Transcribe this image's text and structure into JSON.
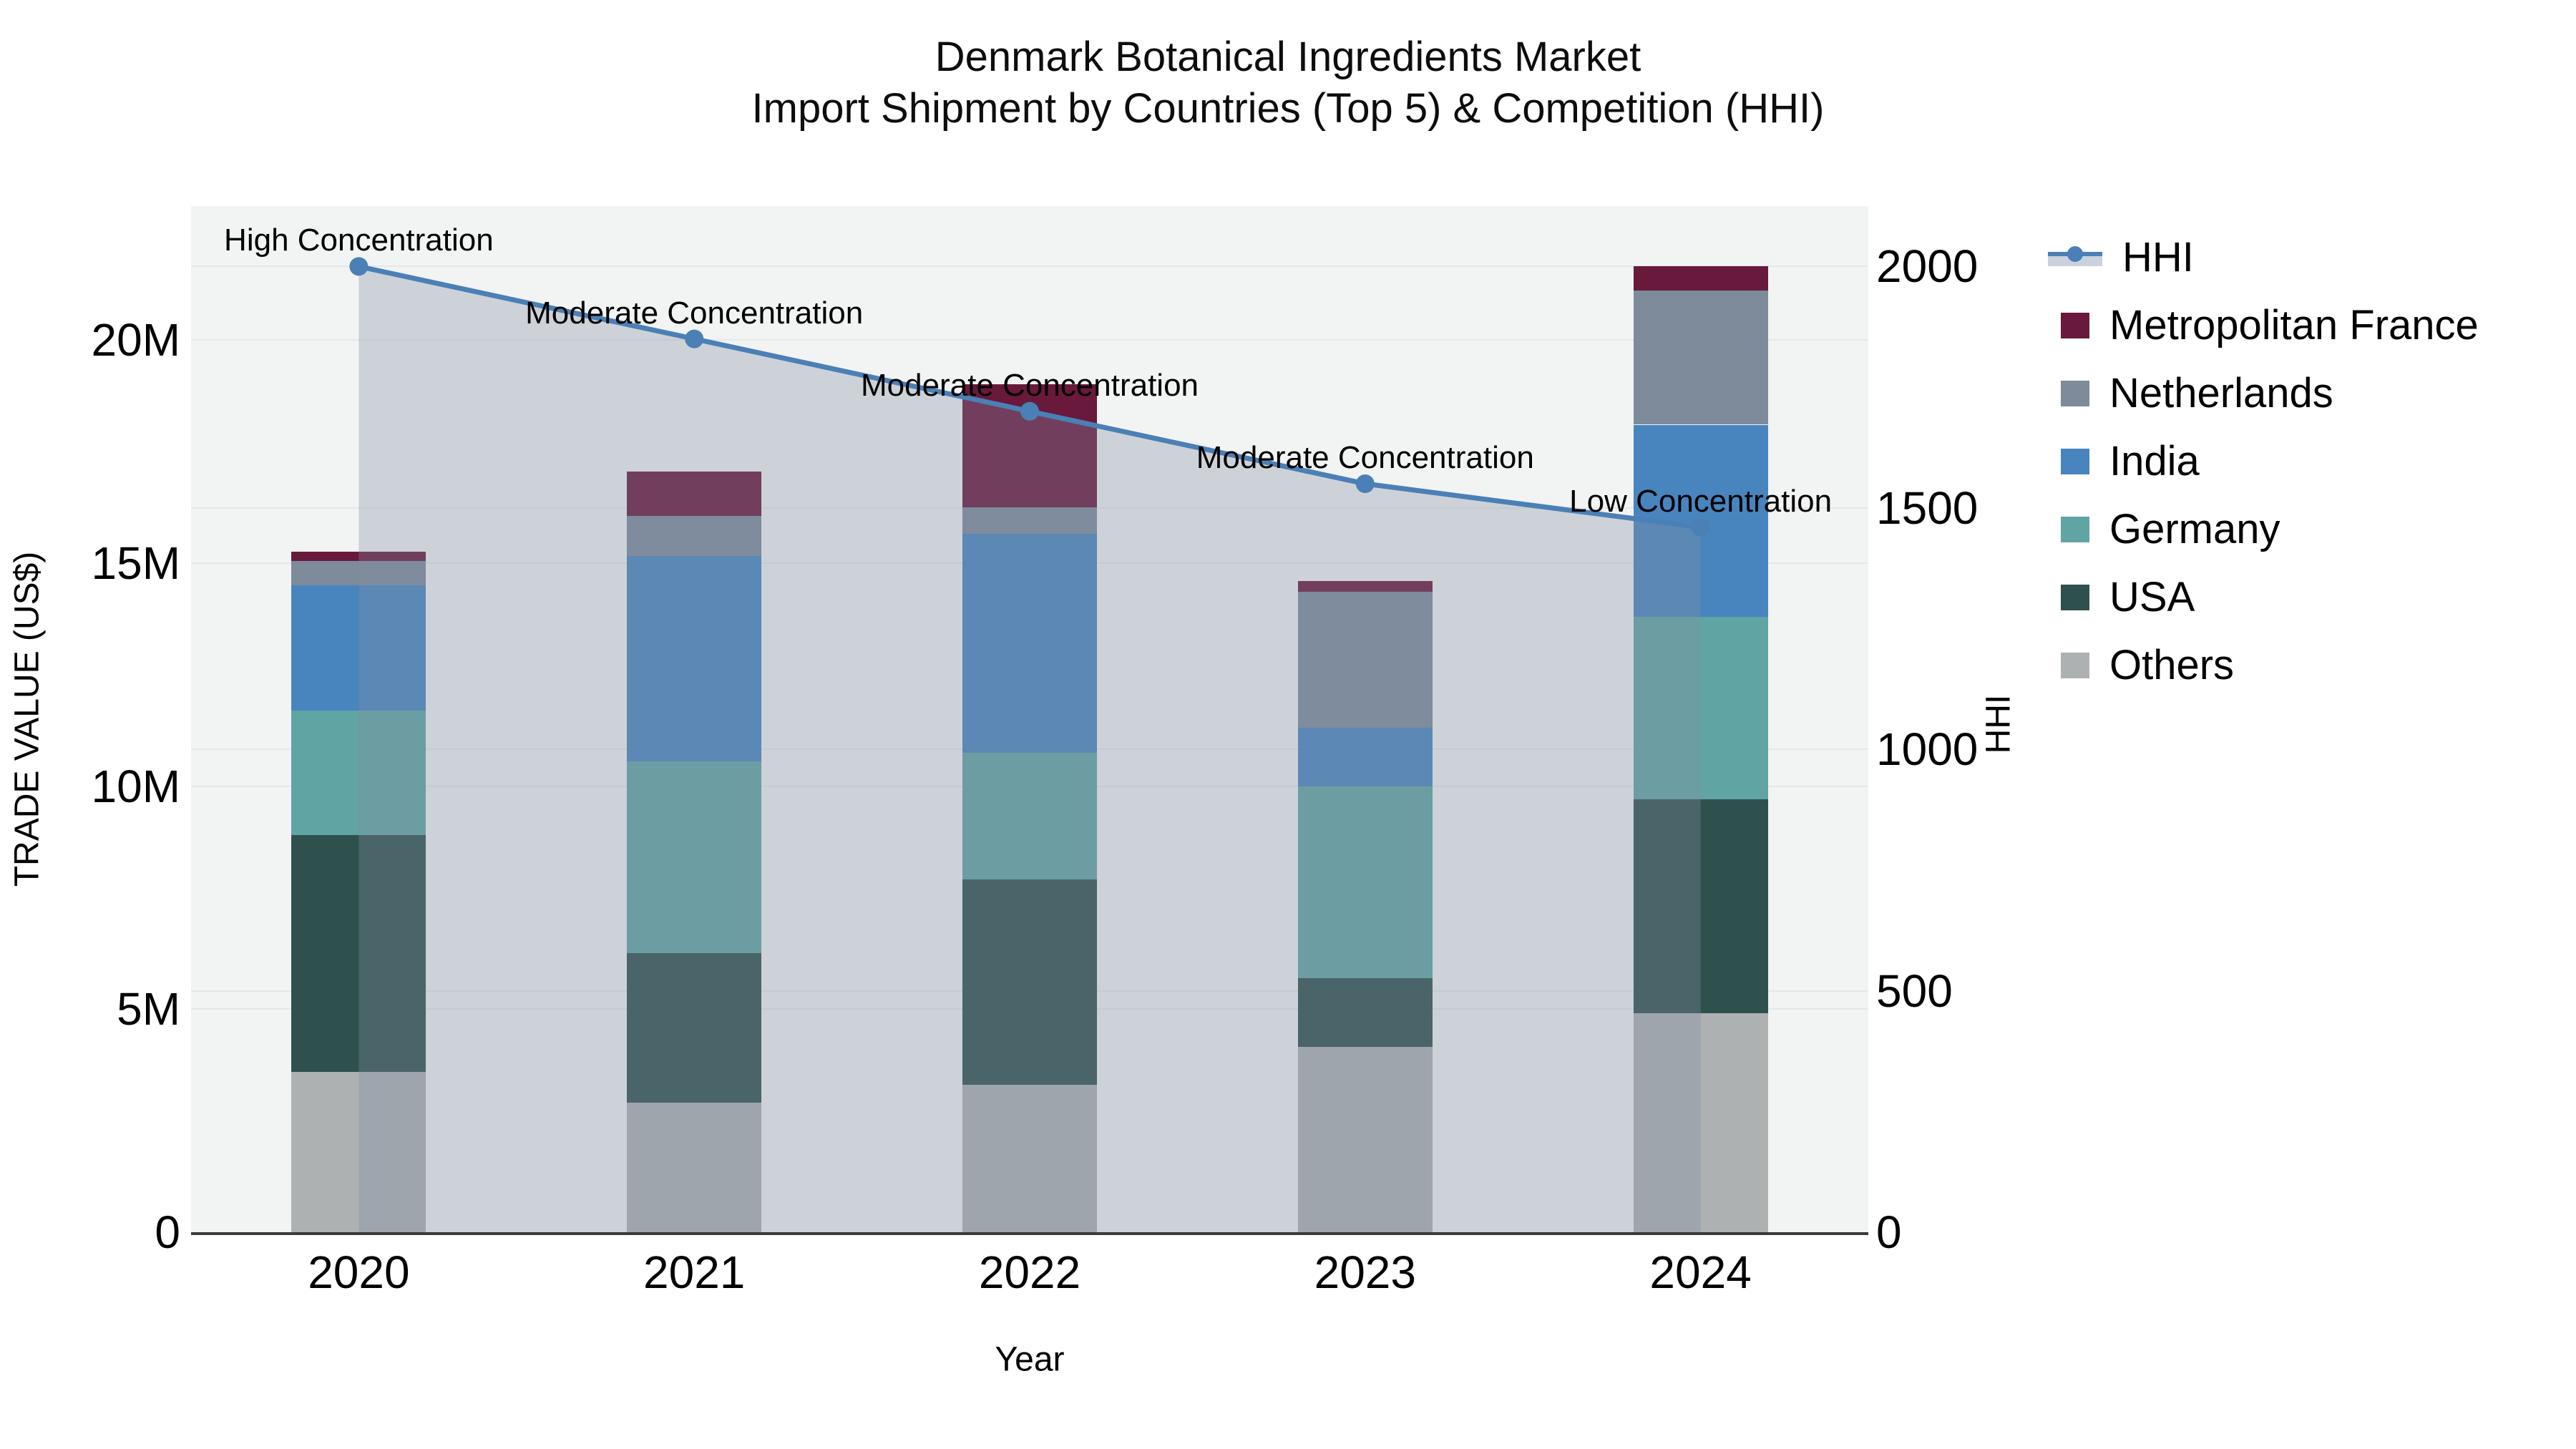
{
  "title": {
    "line1": "Denmark Botanical Ingredients Market",
    "line2": "Import Shipment by Countries (Top 5) & Competition (HHI)"
  },
  "chart_data": {
    "type": "combo: stacked bar + line (dual y-axes)",
    "categories": [
      "2020",
      "2021",
      "2022",
      "2023",
      "2024"
    ],
    "bar_value_unit": "million US$",
    "series": [
      {
        "name": "Others",
        "color": "#aeb1b2",
        "values": [
          3.6,
          2.9,
          3.3,
          4.15,
          4.9
        ]
      },
      {
        "name": "USA",
        "color": "#2f514e",
        "values": [
          5.3,
          3.35,
          4.6,
          1.55,
          4.8
        ]
      },
      {
        "name": "Germany",
        "color": "#60a4a4",
        "values": [
          2.8,
          4.3,
          2.85,
          4.3,
          4.1
        ]
      },
      {
        "name": "India",
        "color": "#4885be",
        "values": [
          2.8,
          4.6,
          4.9,
          1.3,
          4.3
        ]
      },
      {
        "name": "Netherlands",
        "color": "#7d8b9b",
        "values": [
          0.55,
          0.9,
          0.6,
          3.05,
          3.0
        ]
      },
      {
        "name": "Metropolitan France",
        "color": "#69193c",
        "values": [
          0.2,
          1.0,
          2.75,
          0.25,
          0.55
        ]
      }
    ],
    "line": {
      "name": "HHI",
      "color": "#4a80b5",
      "area_fill_color": "rgba(130,142,160,0.33)",
      "values": [
        2000,
        1850,
        1700,
        1550,
        1460
      ]
    },
    "annotations": [
      "High Concentration",
      "Moderate Concentration",
      "Moderate Concentration",
      "Moderate Concentration",
      "Low Concentration"
    ],
    "x_axis": {
      "label": "Year"
    },
    "y_left": {
      "label": "TRADE VALUE (US$)",
      "max": 23,
      "ticks": [
        {
          "value": 0,
          "label": "0"
        },
        {
          "value": 5,
          "label": "5M"
        },
        {
          "value": 10,
          "label": "10M"
        },
        {
          "value": 15,
          "label": "15M"
        },
        {
          "value": 20,
          "label": "20M"
        }
      ]
    },
    "y_right": {
      "label": "HHI",
      "max": 2125,
      "ticks": [
        {
          "value": 0,
          "label": "0"
        },
        {
          "value": 500,
          "label": "500"
        },
        {
          "value": 1000,
          "label": "1000"
        },
        {
          "value": 1500,
          "label": "1500"
        },
        {
          "value": 2000,
          "label": "2000"
        }
      ]
    },
    "legend_order": [
      "HHI",
      "Metropolitan France",
      "Netherlands",
      "India",
      "Germany",
      "USA",
      "Others"
    ],
    "grid": true,
    "legend_position": "right"
  }
}
